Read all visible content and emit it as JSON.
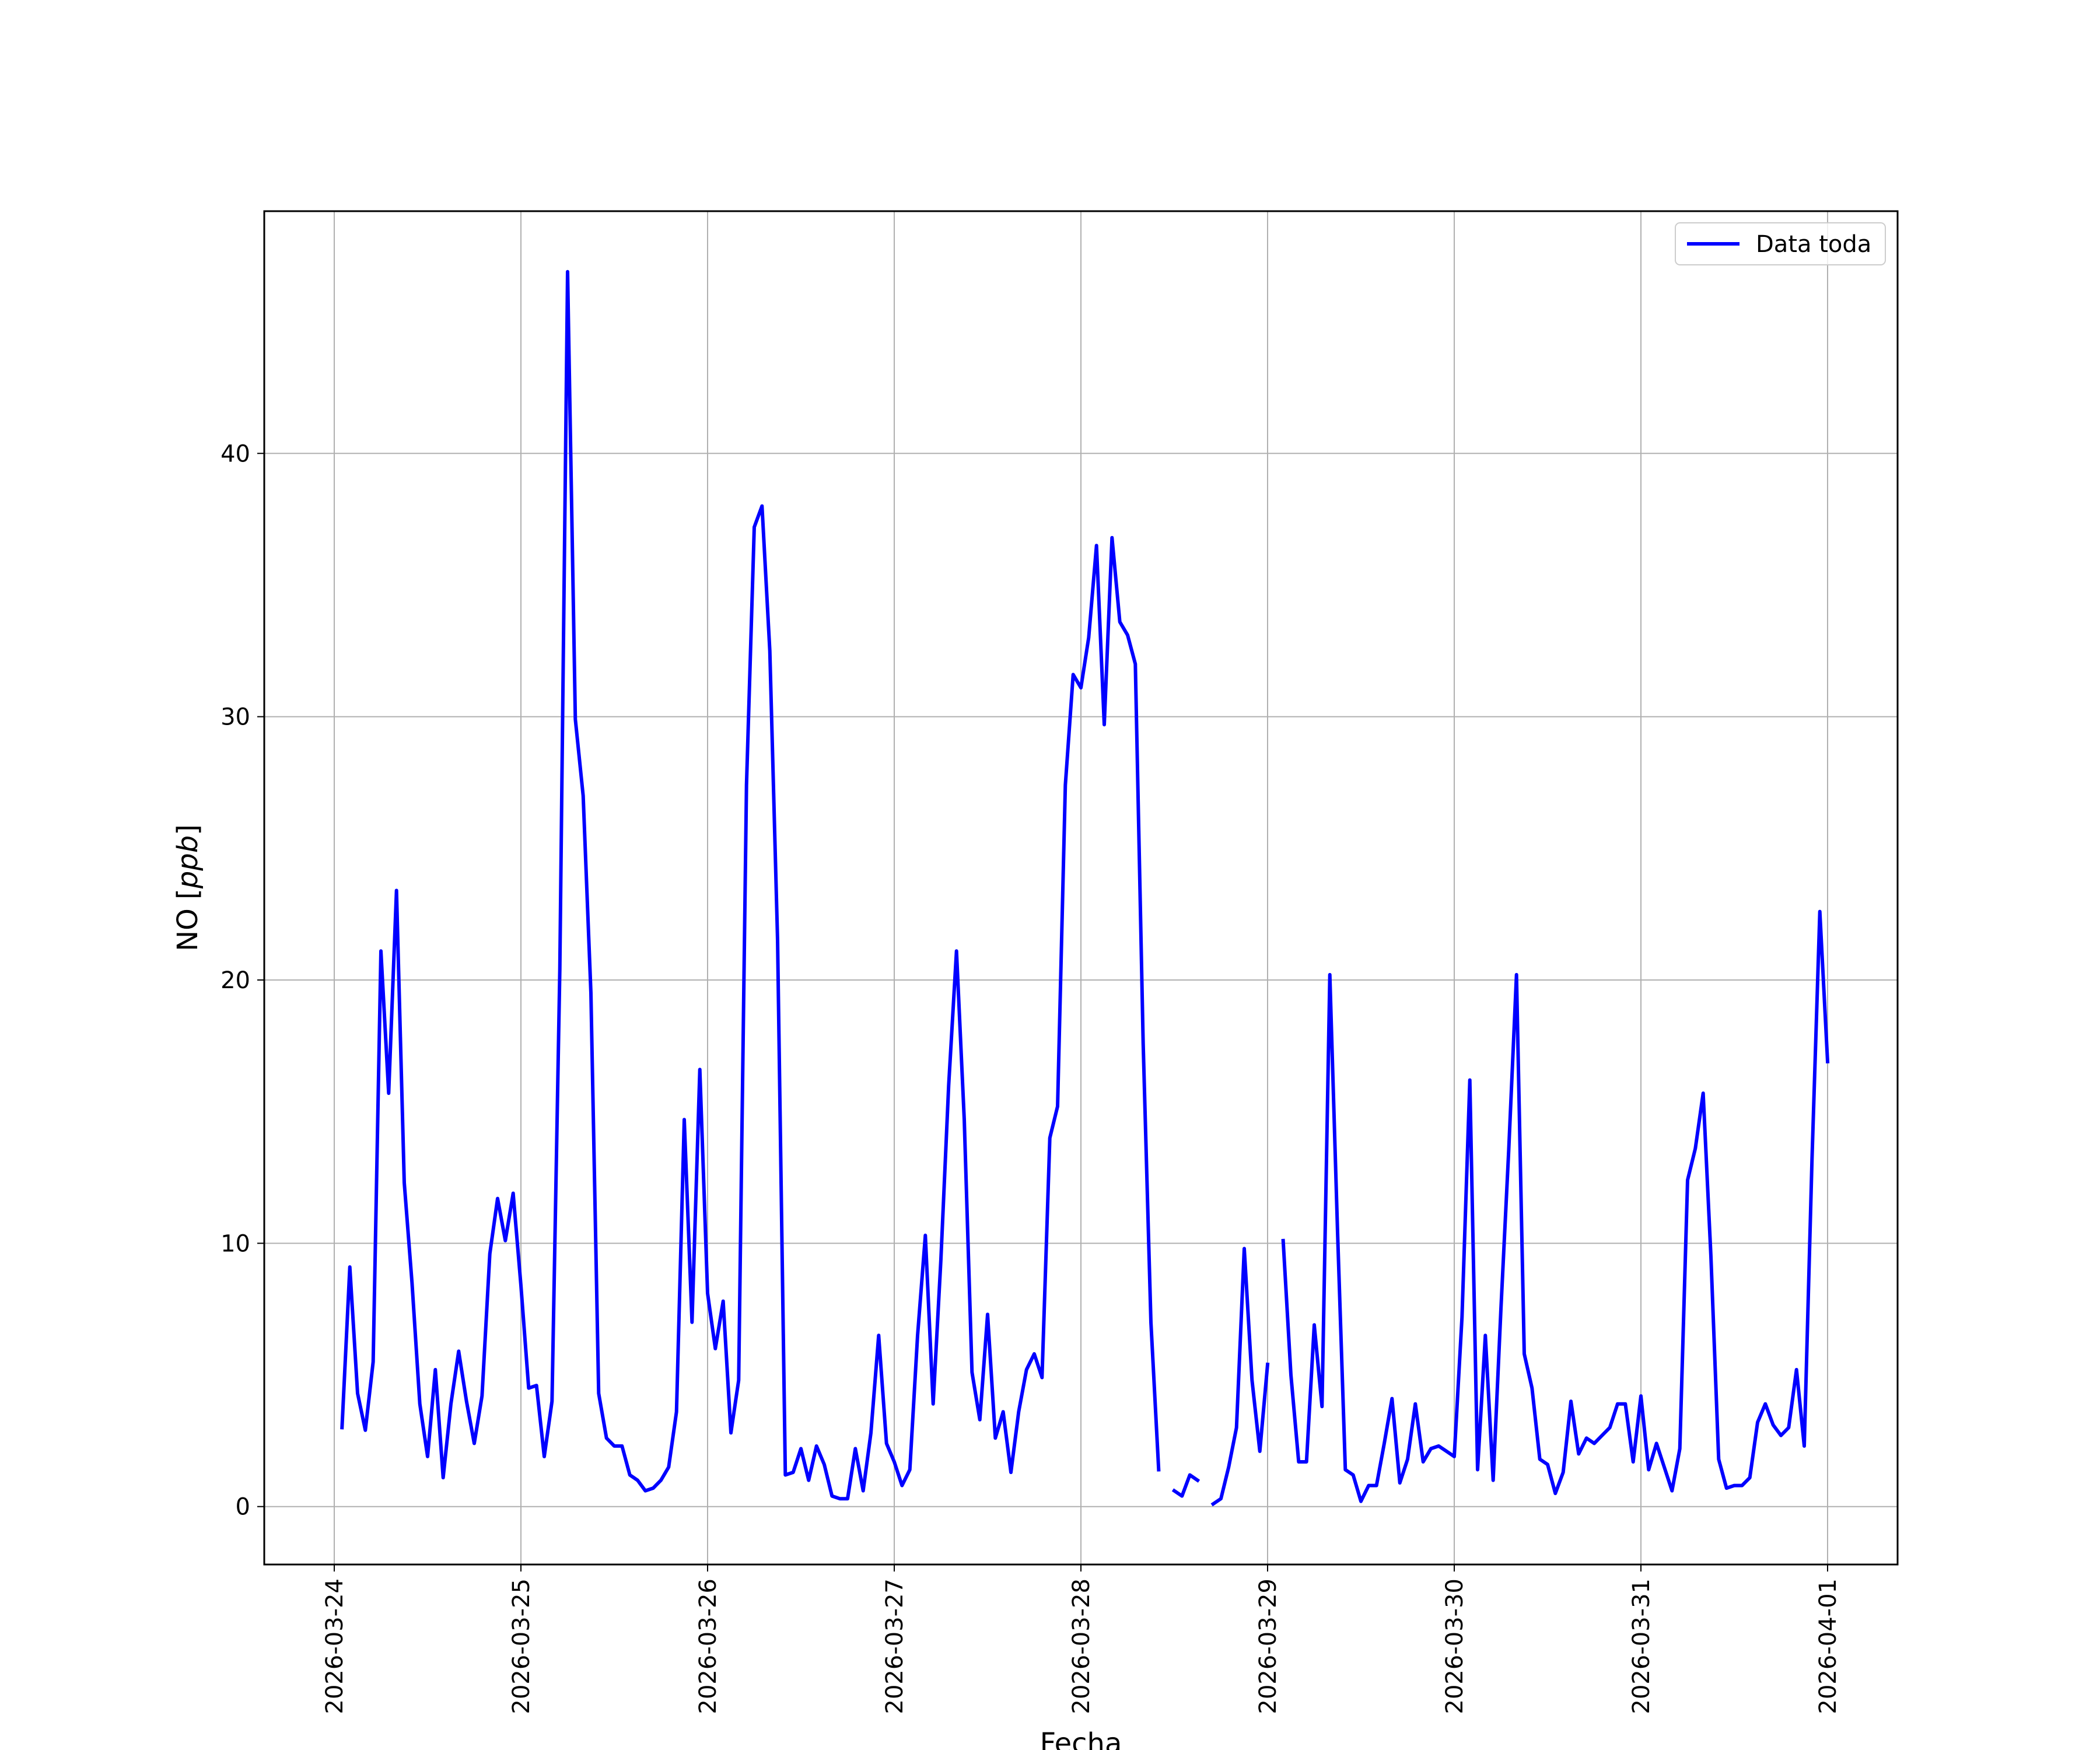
{
  "chart_data": {
    "type": "line",
    "title": "",
    "xlabel": "Fecha",
    "ylabel_plain": "NO [",
    "ylabel_italic": "ppb",
    "ylabel_close": "]",
    "x_ticks": [
      "2026-03-24",
      "2026-03-25",
      "2026-03-26",
      "2026-03-27",
      "2026-03-28",
      "2026-03-29",
      "2026-03-30",
      "2026-03-31",
      "2026-04-01"
    ],
    "y_ticks": [
      "0",
      "10",
      "20",
      "30",
      "40"
    ],
    "xlim": [
      "2026-03-23T15:00",
      "2026-04-01T09:00"
    ],
    "ylim": [
      -2.2,
      49.2
    ],
    "grid": true,
    "legend_position": "top-right",
    "series": [
      {
        "name": "Data toda",
        "color": "#0000ff",
        "points": [
          [
            "2026-03-24T01:00",
            3.0
          ],
          [
            "2026-03-24T02:00",
            9.1
          ],
          [
            "2026-03-24T03:00",
            4.3
          ],
          [
            "2026-03-24T04:00",
            2.9
          ],
          [
            "2026-03-24T05:00",
            5.5
          ],
          [
            "2026-03-24T06:00",
            21.1
          ],
          [
            "2026-03-24T07:00",
            15.7
          ],
          [
            "2026-03-24T08:00",
            23.4
          ],
          [
            "2026-03-24T09:00",
            12.3
          ],
          [
            "2026-03-24T10:00",
            8.5
          ],
          [
            "2026-03-24T11:00",
            3.9
          ],
          [
            "2026-03-24T12:00",
            1.9
          ],
          [
            "2026-03-24T13:00",
            5.2
          ],
          [
            "2026-03-24T14:00",
            1.1
          ],
          [
            "2026-03-24T15:00",
            3.9
          ],
          [
            "2026-03-24T16:00",
            5.9
          ],
          [
            "2026-03-24T17:00",
            4.0
          ],
          [
            "2026-03-24T18:00",
            2.4
          ],
          [
            "2026-03-24T19:00",
            4.2
          ],
          [
            "2026-03-24T20:00",
            9.6
          ],
          [
            "2026-03-24T21:00",
            11.7
          ],
          [
            "2026-03-24T22:00",
            10.1
          ],
          [
            "2026-03-24T23:00",
            11.9
          ],
          [
            "2026-03-25T00:00",
            8.4
          ],
          [
            "2026-03-25T01:00",
            4.5
          ],
          [
            "2026-03-25T02:00",
            4.6
          ],
          [
            "2026-03-25T03:00",
            1.9
          ],
          [
            "2026-03-25T04:00",
            4.0
          ],
          [
            "2026-03-25T05:00",
            20.4
          ],
          [
            "2026-03-25T06:00",
            46.9
          ],
          [
            "2026-03-25T07:00",
            29.9
          ],
          [
            "2026-03-25T08:00",
            27.0
          ],
          [
            "2026-03-25T09:00",
            19.5
          ],
          [
            "2026-03-25T10:00",
            4.3
          ],
          [
            "2026-03-25T11:00",
            2.6
          ],
          [
            "2026-03-25T12:00",
            2.3
          ],
          [
            "2026-03-25T13:00",
            2.3
          ],
          [
            "2026-03-25T14:00",
            1.2
          ],
          [
            "2026-03-25T15:00",
            1.0
          ],
          [
            "2026-03-25T16:00",
            0.6
          ],
          [
            "2026-03-25T17:00",
            0.7
          ],
          [
            "2026-03-25T18:00",
            1.0
          ],
          [
            "2026-03-25T19:00",
            1.5
          ],
          [
            "2026-03-25T20:00",
            3.6
          ],
          [
            "2026-03-25T21:00",
            14.7
          ],
          [
            "2026-03-25T22:00",
            7.0
          ],
          [
            "2026-03-25T23:00",
            16.6
          ],
          [
            "2026-03-26T00:00",
            8.1
          ],
          [
            "2026-03-26T01:00",
            6.0
          ],
          [
            "2026-03-26T02:00",
            7.8
          ],
          [
            "2026-03-26T03:00",
            2.8
          ],
          [
            "2026-03-26T04:00",
            4.8
          ],
          [
            "2026-03-26T05:00",
            27.4
          ],
          [
            "2026-03-26T06:00",
            37.2
          ],
          [
            "2026-03-26T07:00",
            38.0
          ],
          [
            "2026-03-26T08:00",
            32.5
          ],
          [
            "2026-03-26T09:00",
            21.5
          ],
          [
            "2026-03-26T10:00",
            1.2
          ],
          [
            "2026-03-26T11:00",
            1.3
          ],
          [
            "2026-03-26T12:00",
            2.2
          ],
          [
            "2026-03-26T13:00",
            1.0
          ],
          [
            "2026-03-26T14:00",
            2.3
          ],
          [
            "2026-03-26T15:00",
            1.6
          ],
          [
            "2026-03-26T16:00",
            0.4
          ],
          [
            "2026-03-26T17:00",
            0.3
          ],
          [
            "2026-03-26T18:00",
            0.3
          ],
          [
            "2026-03-26T19:00",
            2.2
          ],
          [
            "2026-03-26T20:00",
            0.6
          ],
          [
            "2026-03-26T21:00",
            2.8
          ],
          [
            "2026-03-26T22:00",
            6.5
          ],
          [
            "2026-03-26T23:00",
            2.4
          ],
          [
            "2026-03-27T00:00",
            1.7
          ],
          [
            "2026-03-27T01:00",
            0.8
          ],
          [
            "2026-03-27T02:00",
            1.4
          ],
          [
            "2026-03-27T03:00",
            6.5
          ],
          [
            "2026-03-27T04:00",
            10.3
          ],
          [
            "2026-03-27T05:00",
            3.9
          ],
          [
            "2026-03-27T06:00",
            9.4
          ],
          [
            "2026-03-27T07:00",
            16.0
          ],
          [
            "2026-03-27T08:00",
            21.1
          ],
          [
            "2026-03-27T09:00",
            14.7
          ],
          [
            "2026-03-27T10:00",
            5.1
          ],
          [
            "2026-03-27T11:00",
            3.3
          ],
          [
            "2026-03-27T12:00",
            7.3
          ],
          [
            "2026-03-27T13:00",
            2.6
          ],
          [
            "2026-03-27T14:00",
            3.6
          ],
          [
            "2026-03-27T15:00",
            1.3
          ],
          [
            "2026-03-27T16:00",
            3.6
          ],
          [
            "2026-03-27T17:00",
            5.2
          ],
          [
            "2026-03-27T18:00",
            5.8
          ],
          [
            "2026-03-27T19:00",
            4.9
          ],
          [
            "2026-03-27T20:00",
            14.0
          ],
          [
            "2026-03-27T21:00",
            15.2
          ],
          [
            "2026-03-27T22:00",
            27.4
          ],
          [
            "2026-03-27T23:00",
            31.6
          ],
          [
            "2026-03-28T00:00",
            31.1
          ],
          [
            "2026-03-28T01:00",
            33.0
          ],
          [
            "2026-03-28T02:00",
            36.5
          ],
          [
            "2026-03-28T03:00",
            29.7
          ],
          [
            "2026-03-28T04:00",
            36.8
          ],
          [
            "2026-03-28T05:00",
            33.6
          ],
          [
            "2026-03-28T06:00",
            33.1
          ],
          [
            "2026-03-28T07:00",
            32.0
          ],
          [
            "2026-03-28T08:00",
            17.6
          ],
          [
            "2026-03-28T09:00",
            7.0
          ],
          [
            "2026-03-28T10:00",
            1.4
          ],
          null,
          [
            "2026-03-28T12:00",
            0.6
          ],
          [
            "2026-03-28T13:00",
            0.4
          ],
          [
            "2026-03-28T14:00",
            1.2
          ],
          [
            "2026-03-28T15:00",
            1.0
          ],
          null,
          [
            "2026-03-28T17:00",
            0.1
          ],
          [
            "2026-03-28T18:00",
            0.3
          ],
          [
            "2026-03-28T19:00",
            1.5
          ],
          [
            "2026-03-28T20:00",
            3.0
          ],
          [
            "2026-03-28T21:00",
            9.8
          ],
          [
            "2026-03-28T22:00",
            4.8
          ],
          [
            "2026-03-28T23:00",
            2.1
          ],
          [
            "2026-03-29T00:00",
            5.4
          ],
          null,
          [
            "2026-03-29T02:00",
            10.1
          ],
          [
            "2026-03-29T03:00",
            5.0
          ],
          [
            "2026-03-29T04:00",
            1.7
          ],
          [
            "2026-03-29T05:00",
            1.7
          ],
          [
            "2026-03-29T06:00",
            6.9
          ],
          [
            "2026-03-29T07:00",
            3.8
          ],
          [
            "2026-03-29T08:00",
            20.2
          ],
          [
            "2026-03-29T09:00",
            10.4
          ],
          [
            "2026-03-29T10:00",
            1.4
          ],
          [
            "2026-03-29T11:00",
            1.2
          ],
          [
            "2026-03-29T12:00",
            0.2
          ],
          [
            "2026-03-29T13:00",
            0.8
          ],
          [
            "2026-03-29T14:00",
            0.8
          ],
          [
            "2026-03-29T15:00",
            2.4
          ],
          [
            "2026-03-29T16:00",
            4.1
          ],
          [
            "2026-03-29T17:00",
            0.9
          ],
          [
            "2026-03-29T18:00",
            1.8
          ],
          [
            "2026-03-29T19:00",
            3.9
          ],
          [
            "2026-03-29T20:00",
            1.7
          ],
          [
            "2026-03-29T21:00",
            2.2
          ],
          [
            "2026-03-29T22:00",
            2.3
          ],
          [
            "2026-03-29T23:00",
            2.1
          ],
          [
            "2026-03-30T00:00",
            1.9
          ],
          [
            "2026-03-30T01:00",
            7.2
          ],
          [
            "2026-03-30T02:00",
            16.2
          ],
          [
            "2026-03-30T03:00",
            1.4
          ],
          [
            "2026-03-30T04:00",
            6.5
          ],
          [
            "2026-03-30T05:00",
            1.0
          ],
          [
            "2026-03-30T06:00",
            7.5
          ],
          [
            "2026-03-30T07:00",
            13.5
          ],
          [
            "2026-03-30T08:00",
            20.2
          ],
          [
            "2026-03-30T09:00",
            5.8
          ],
          [
            "2026-03-30T10:00",
            4.5
          ],
          [
            "2026-03-30T11:00",
            1.8
          ],
          [
            "2026-03-30T12:00",
            1.6
          ],
          [
            "2026-03-30T13:00",
            0.5
          ],
          [
            "2026-03-30T14:00",
            1.3
          ],
          [
            "2026-03-30T15:00",
            4.0
          ],
          [
            "2026-03-30T16:00",
            2.0
          ],
          [
            "2026-03-30T17:00",
            2.6
          ],
          [
            "2026-03-30T18:00",
            2.4
          ],
          [
            "2026-03-30T19:00",
            2.7
          ],
          [
            "2026-03-30T20:00",
            3.0
          ],
          [
            "2026-03-30T21:00",
            3.9
          ],
          [
            "2026-03-30T22:00",
            3.9
          ],
          [
            "2026-03-30T23:00",
            1.7
          ],
          [
            "2026-03-31T00:00",
            4.2
          ],
          [
            "2026-03-31T01:00",
            1.4
          ],
          [
            "2026-03-31T02:00",
            2.4
          ],
          [
            "2026-03-31T03:00",
            1.5
          ],
          [
            "2026-03-31T04:00",
            0.6
          ],
          [
            "2026-03-31T05:00",
            2.2
          ],
          [
            "2026-03-31T06:00",
            12.4
          ],
          [
            "2026-03-31T07:00",
            13.6
          ],
          [
            "2026-03-31T08:00",
            15.7
          ],
          [
            "2026-03-31T09:00",
            9.5
          ],
          [
            "2026-03-31T10:00",
            1.8
          ],
          [
            "2026-03-31T11:00",
            0.7
          ],
          [
            "2026-03-31T12:00",
            0.8
          ],
          [
            "2026-03-31T13:00",
            0.8
          ],
          [
            "2026-03-31T14:00",
            1.1
          ],
          [
            "2026-03-31T15:00",
            3.2
          ],
          [
            "2026-03-31T16:00",
            3.9
          ],
          [
            "2026-03-31T17:00",
            3.1
          ],
          [
            "2026-03-31T18:00",
            2.7
          ],
          [
            "2026-03-31T19:00",
            3.0
          ],
          [
            "2026-03-31T20:00",
            5.2
          ],
          [
            "2026-03-31T21:00",
            2.3
          ],
          [
            "2026-03-31T22:00",
            13.2
          ],
          [
            "2026-03-31T23:00",
            22.6
          ],
          [
            "2026-04-01T00:00",
            16.9
          ]
        ]
      }
    ]
  }
}
